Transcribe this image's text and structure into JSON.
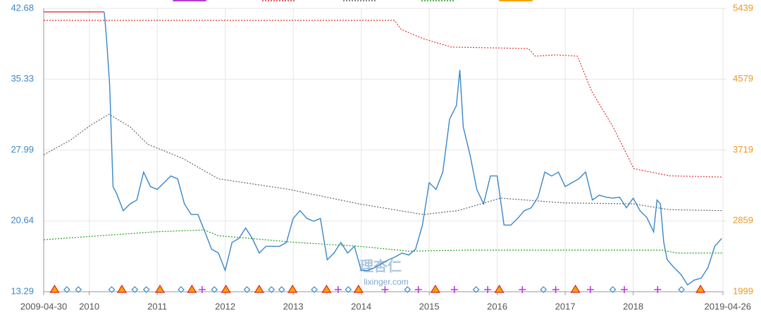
{
  "chart_data": {
    "type": "line",
    "xlim": [
      2009.33,
      2019.32
    ],
    "xticks": [
      {
        "value": 2009.33,
        "label": "2009-04-30"
      },
      2010,
      2011,
      2012,
      2013,
      2014,
      2015,
      2016,
      2017,
      2018,
      {
        "value": 2019.32,
        "label": "2019-04-26"
      }
    ],
    "ylim": [
      13.29,
      42.68
    ],
    "yticks": [
      13.29,
      20.64,
      27.99,
      35.33,
      42.68
    ],
    "y2lim": [
      1999,
      5439
    ],
    "y2ticks": [
      1999,
      2859,
      3719,
      4579,
      5439
    ],
    "grid": true,
    "left_axis_color": "#3a87c8",
    "right_axis_color": "#f0961e",
    "series": [
      {
        "color": "#3a87c8",
        "style": "solid",
        "x": [
          2010.22,
          2010.25,
          2010.3,
          2010.35,
          2010.4,
          2010.5,
          2010.6,
          2010.7,
          2010.8,
          2010.9,
          2011.0,
          2011.1,
          2011.2,
          2011.3,
          2011.4,
          2011.5,
          2011.6,
          2011.7,
          2011.8,
          2011.9,
          2012.0,
          2012.1,
          2012.2,
          2012.3,
          2012.4,
          2012.5,
          2012.6,
          2012.7,
          2012.8,
          2012.9,
          2013.0,
          2013.1,
          2013.2,
          2013.3,
          2013.4,
          2013.5,
          2013.6,
          2013.7,
          2013.8,
          2013.9,
          2014.0,
          2014.1,
          2014.2,
          2014.3,
          2014.4,
          2014.5,
          2014.6,
          2014.7,
          2014.8,
          2014.9,
          2015.0,
          2015.1,
          2015.2,
          2015.3,
          2015.4,
          2015.45,
          2015.5,
          2015.6,
          2015.7,
          2015.8,
          2015.9,
          2016.0,
          2016.1,
          2016.2,
          2016.3,
          2016.4,
          2016.5,
          2016.6,
          2016.7,
          2016.8,
          2016.9,
          2017.0,
          2017.1,
          2017.2,
          2017.3,
          2017.4,
          2017.5,
          2017.6,
          2017.7,
          2017.8,
          2017.9,
          2018.0,
          2018.1,
          2018.2,
          2018.3,
          2018.35,
          2018.4,
          2018.45,
          2018.5,
          2018.6,
          2018.7,
          2018.8,
          2018.9,
          2019.0,
          2019.1,
          2019.2,
          2019.3
        ],
        "values": [
          42.3,
          39.9,
          34.8,
          24.2,
          23.5,
          21.7,
          22.4,
          22.8,
          25.7,
          24.2,
          23.9,
          24.6,
          25.3,
          25.0,
          22.4,
          21.3,
          21.3,
          19.5,
          17.7,
          17.3,
          15.5,
          18.4,
          18.8,
          19.9,
          18.8,
          17.3,
          18.0,
          18.0,
          18.0,
          18.4,
          20.9,
          21.7,
          20.9,
          20.6,
          20.9,
          16.6,
          17.3,
          18.4,
          17.3,
          18.0,
          15.5,
          15.5,
          15.8,
          16.2,
          16.6,
          16.9,
          17.3,
          17.1,
          17.7,
          20.2,
          24.6,
          23.9,
          25.7,
          31.2,
          32.6,
          36.3,
          30.4,
          27.5,
          23.9,
          22.4,
          25.3,
          25.3,
          20.2,
          20.2,
          20.9,
          21.7,
          22.0,
          23.1,
          25.7,
          25.3,
          25.7,
          24.2,
          24.6,
          25.0,
          25.7,
          22.8,
          23.3,
          23.1,
          23.0,
          23.1,
          22.0,
          23.0,
          21.7,
          21.0,
          19.5,
          22.8,
          22.4,
          18.4,
          16.6,
          15.8,
          15.1,
          14.0,
          14.5,
          14.7,
          15.8,
          18.0,
          18.8
        ]
      },
      {
        "color": "#e03030",
        "style": "solid",
        "x": [
          2009.33,
          2010.22
        ],
        "values": [
          42.32,
          42.32
        ]
      },
      {
        "color": "#e03030",
        "style": "dotted",
        "axis": "y2",
        "x": [
          2009.33,
          2014.49,
          2014.59,
          2014.91,
          2015.32,
          2016.46,
          2016.56,
          2016.87,
          2017.18,
          2017.39,
          2017.7,
          2018.01,
          2018.53,
          2019.32
        ],
        "values": [
          5294,
          5294,
          5183,
          5072,
          4970,
          4952,
          4859,
          4876,
          4859,
          4432,
          4005,
          3493,
          3407,
          3390
        ]
      },
      {
        "color": "#666666",
        "style": "dotted",
        "x": [
          2009.33,
          2009.72,
          2010.03,
          2010.29,
          2010.6,
          2010.86,
          2011.38,
          2011.9,
          2012.94,
          2013.97,
          2014.91,
          2015.42,
          2016.05,
          2016.98,
          2018.01,
          2018.53,
          2019.32
        ],
        "values": [
          27.5,
          29.0,
          30.6,
          31.7,
          30.4,
          28.6,
          27.1,
          25.0,
          23.9,
          22.4,
          21.3,
          21.7,
          23.0,
          22.5,
          22.4,
          21.8,
          21.7
        ]
      },
      {
        "color": "#22a022",
        "style": "dotted",
        "x": [
          2009.33,
          2010.97,
          2011.69,
          2011.9,
          2013.04,
          2013.97,
          2014.7,
          2015.53,
          2018.43,
          2018.64,
          2019.32
        ],
        "values": [
          18.68,
          19.5,
          19.7,
          19.1,
          18.4,
          18.0,
          17.5,
          17.6,
          17.6,
          17.3,
          17.3
        ]
      }
    ],
    "markers": [
      {
        "symbol": "triangle",
        "color": "#f5a300",
        "stroke": "#e02020",
        "x": [
          2009.49,
          2010.48,
          2011.04,
          2011.51,
          2012.01,
          2012.5,
          2012.99,
          2013.49,
          2013.96,
          2015.09,
          2016.03,
          2017.15,
          2018.99
        ]
      },
      {
        "symbol": "diamond",
        "color": "#3a87c8",
        "x": [
          2009.67,
          2009.84,
          2010.33,
          2010.67,
          2010.84,
          2011.35,
          2011.84,
          2012.32,
          2012.68,
          2012.83,
          2013.31,
          2013.81,
          2014.68,
          2015.69,
          2016.68,
          2017.7,
          2018.71
        ]
      },
      {
        "symbol": "plus",
        "color": "#b23cd6",
        "x": [
          2011.66,
          2013.66,
          2014.35,
          2014.84,
          2015.37,
          2015.86,
          2016.37,
          2016.86,
          2017.37,
          2017.87,
          2018.36
        ]
      }
    ],
    "watermark": {
      "logo": "理杏仁",
      "url": "lixinger.com"
    }
  }
}
